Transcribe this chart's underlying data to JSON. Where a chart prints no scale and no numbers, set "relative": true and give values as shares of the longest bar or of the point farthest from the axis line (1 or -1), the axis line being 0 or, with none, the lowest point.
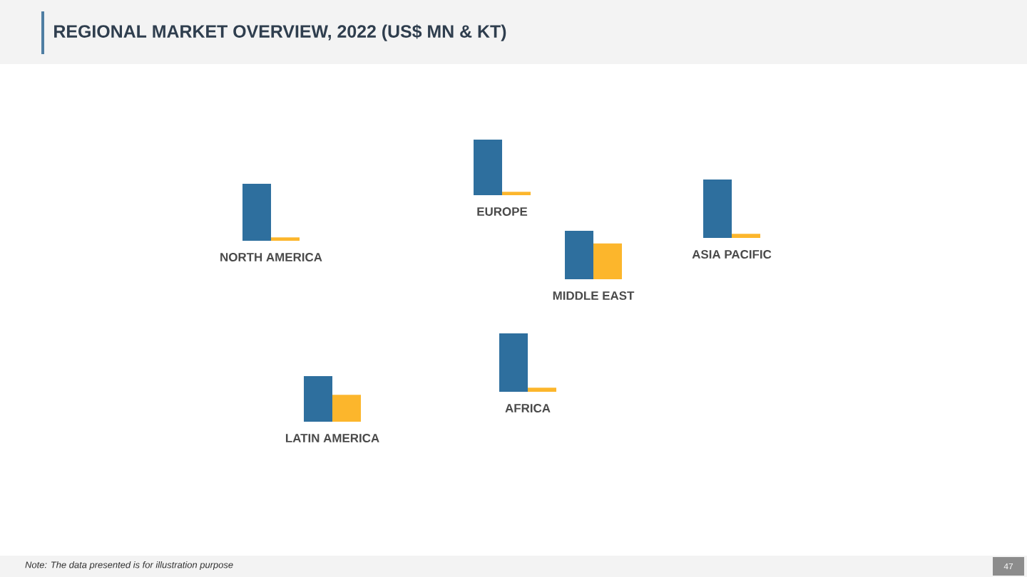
{
  "chart_data": [
    {
      "type": "other",
      "title": "REGIONAL MARKET OVERVIEW, 2022 (US$ MN & KT)",
      "annotations": [
        "Note: The data presented is for illustration purpose",
        "47"
      ]
    },
    {
      "type": "bar",
      "relative": true,
      "categories": [
        "NORTH AMERICA"
      ],
      "series": [
        {
          "color": "#2e6f9e",
          "values": [
            1
          ]
        },
        {
          "color": "#fcb62c",
          "values": [
            0.06
          ]
        }
      ]
    },
    {
      "type": "bar",
      "relative": true,
      "categories": [
        "EUROPE"
      ],
      "series": [
        {
          "color": "#2e6f9e",
          "values": [
            1
          ]
        },
        {
          "color": "#fcb62c",
          "values": [
            0.06
          ]
        }
      ]
    },
    {
      "type": "bar",
      "relative": true,
      "categories": [
        "MIDDLE EAST"
      ],
      "series": [
        {
          "color": "#2e6f9e",
          "values": [
            1
          ]
        },
        {
          "color": "#fcb62c",
          "values": [
            0.74
          ]
        }
      ]
    },
    {
      "type": "bar",
      "relative": true,
      "categories": [
        "ASIA PACIFIC"
      ],
      "series": [
        {
          "color": "#2e6f9e",
          "values": [
            1
          ]
        },
        {
          "color": "#fcb62c",
          "values": [
            0.07
          ]
        }
      ]
    },
    {
      "type": "bar",
      "relative": true,
      "categories": [
        "LATIN AMERICA"
      ],
      "series": [
        {
          "color": "#2e6f9e",
          "values": [
            1
          ]
        },
        {
          "color": "#fcb62c",
          "values": [
            0.59
          ]
        }
      ]
    },
    {
      "type": "bar",
      "relative": true,
      "categories": [
        "AFRICA"
      ],
      "series": [
        {
          "color": "#2e6f9e",
          "values": [
            1
          ]
        },
        {
          "color": "#fcb62c",
          "values": [
            0.07
          ]
        }
      ]
    }
  ]
}
